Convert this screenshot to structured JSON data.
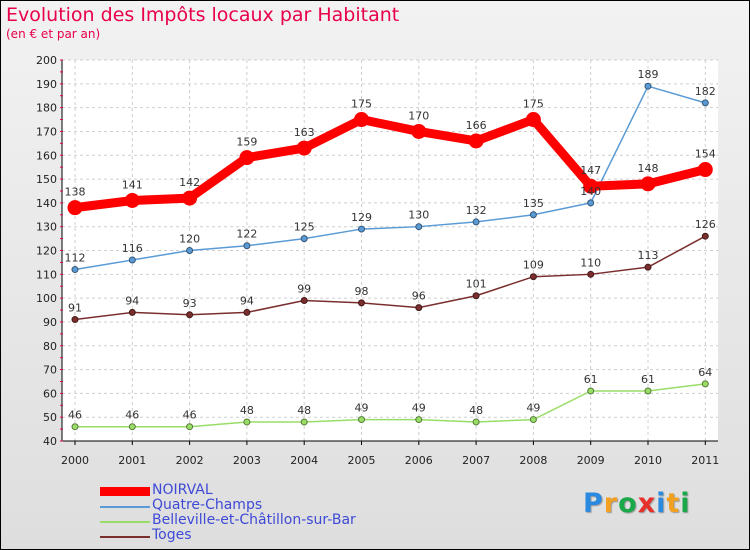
{
  "title": "Evolution des Impôts locaux par Habitant",
  "subtitle": "(en € et par an)",
  "logo": {
    "text": "Proxiti",
    "colors": [
      "#2a8ae0",
      "#f2a020",
      "#1aa84a",
      "#e8302a",
      "#2a8ae0",
      "#f2a020",
      "#1aa84a"
    ]
  },
  "chart_data": {
    "type": "line",
    "title": "Evolution des Impôts locaux par Habitant",
    "subtitle": "(en € et par an)",
    "xlabel": "",
    "ylabel": "",
    "categories": [
      "2000",
      "2001",
      "2002",
      "2003",
      "2004",
      "2005",
      "2006",
      "2007",
      "2008",
      "2009",
      "2010",
      "2011"
    ],
    "ylim": [
      40,
      200
    ],
    "yticks": [
      40,
      50,
      60,
      70,
      80,
      90,
      100,
      110,
      120,
      130,
      140,
      150,
      160,
      170,
      180,
      190,
      200
    ],
    "grid": true,
    "legend_position": "bottom-left",
    "series": [
      {
        "name": "NOIRVAL",
        "color": "#ff0000",
        "width": "thick",
        "values": [
          138,
          141,
          142,
          159,
          163,
          175,
          170,
          166,
          175,
          147,
          148,
          154
        ]
      },
      {
        "name": "Quatre-Champs",
        "color": "#5b9bd5",
        "width": "thin",
        "values": [
          112,
          116,
          120,
          122,
          125,
          129,
          130,
          132,
          135,
          140,
          189,
          182
        ],
        "labels": [
          "112",
          "116",
          "120",
          "122",
          "125",
          "129",
          "130",
          "132",
          "135",
          "140",
          "189",
          "182"
        ]
      },
      {
        "name": "Belleville-et-Châtillon-sur-Bar",
        "color": "#99dd66",
        "width": "thin",
        "values": [
          46,
          46,
          46,
          48,
          48,
          49,
          49,
          48,
          49,
          61,
          61,
          64
        ]
      },
      {
        "name": "Toges",
        "color": "#7a2e2e",
        "width": "thin",
        "values": [
          91,
          94,
          93,
          94,
          99,
          98,
          96,
          101,
          109,
          110,
          113,
          126
        ]
      }
    ]
  }
}
